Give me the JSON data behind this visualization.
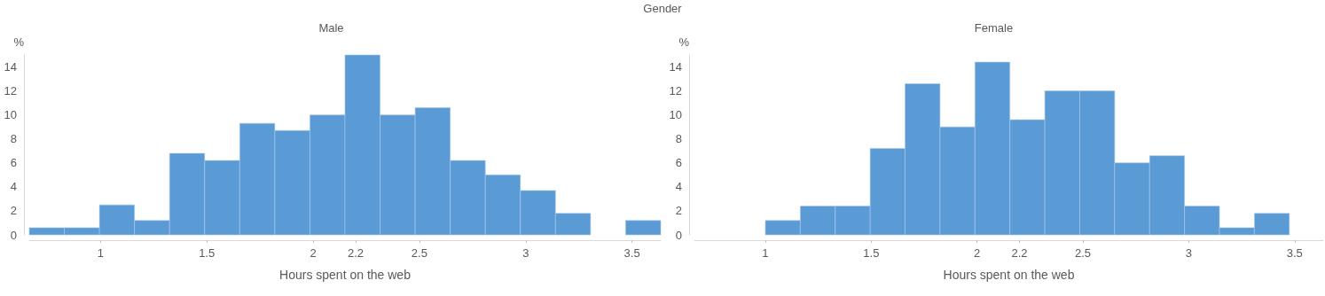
{
  "chart_data": [
    {
      "type": "histogram",
      "title": "Male",
      "xlabel": "Hours spent on the web",
      "ylabel": "%",
      "annotations": [
        "Gender"
      ],
      "bins": [
        0.665,
        0.83,
        0.995,
        1.16,
        1.325,
        1.49,
        1.655,
        1.82,
        1.985,
        2.15,
        2.315,
        2.48,
        2.645,
        2.81,
        2.975,
        3.14,
        3.305,
        3.47,
        3.635
      ],
      "values": [
        0.6,
        0.6,
        2.5,
        1.2,
        6.8,
        6.2,
        9.3,
        8.7,
        10,
        15,
        10,
        10.6,
        6.2,
        5,
        3.7,
        1.8,
        0,
        1.2
      ],
      "color": "#5b9bd5",
      "xlim": [
        0.665,
        3.635
      ],
      "xticks": [
        1,
        1.5,
        2,
        2.2,
        2.5,
        3,
        3.5
      ],
      "ylim": [
        0,
        15
      ],
      "yticks": [
        0,
        2,
        4,
        6,
        8,
        10,
        12,
        14
      ],
      "grid": false
    },
    {
      "type": "histogram",
      "title": "Female",
      "xlabel": "Hours spent on the web",
      "ylabel": "%",
      "bins": [
        1.0,
        1.165,
        1.33,
        1.495,
        1.66,
        1.825,
        1.99,
        2.155,
        2.32,
        2.485,
        2.65,
        2.815,
        2.98,
        3.145,
        3.31,
        3.475
      ],
      "values": [
        1.2,
        2.4,
        2.4,
        7.2,
        12.6,
        9,
        14.4,
        9.6,
        12,
        12,
        6,
        6.6,
        2.4,
        0.6,
        1.8
      ],
      "color": "#5b9bd5",
      "xlim": [
        0.665,
        3.635
      ],
      "xticks": [
        1,
        1.5,
        2,
        2.2,
        2.5,
        3,
        3.5
      ],
      "ylim": [
        0,
        15
      ],
      "yticks": [
        0,
        2,
        4,
        6,
        8,
        10,
        12,
        14
      ],
      "grid": false
    }
  ]
}
